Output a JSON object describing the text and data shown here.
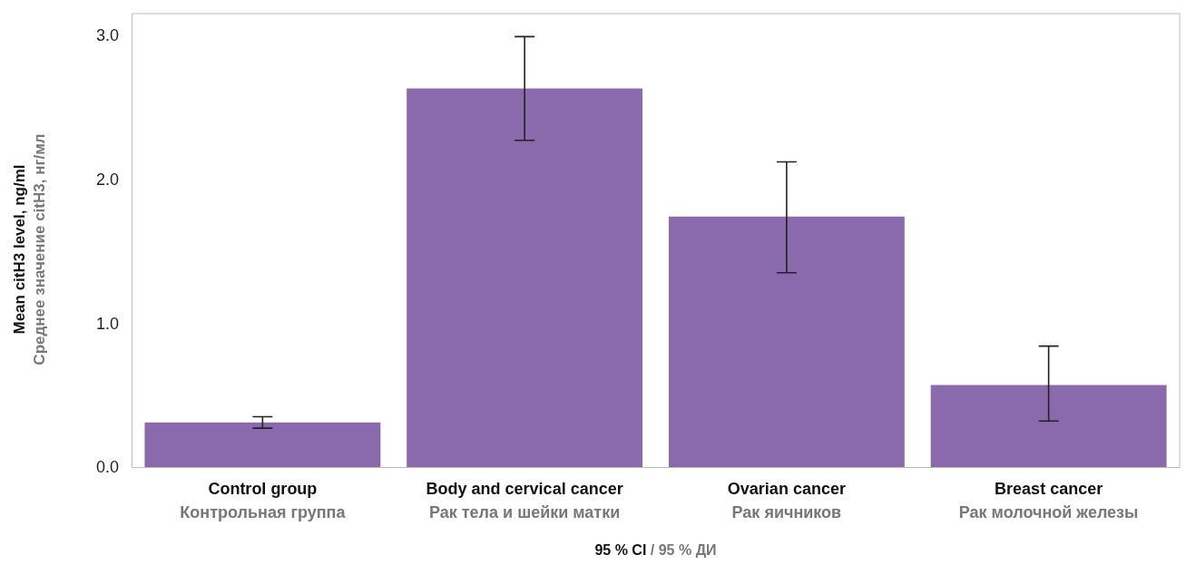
{
  "chart_data": {
    "type": "bar",
    "xlabel": "95 % CI / 95 % ДИ",
    "ylabel": "Mean citH3 level, ng/ml\nСреднее значение citH3, нг/мл",
    "categories": [
      "Control group\nКонтрольная группа",
      "Body and cervical cancer\nРак тела и шейки матки",
      "Ovarian cancer\nРак яичников",
      "Breast cancer\nРак молочной железы"
    ],
    "values": [
      0.31,
      2.63,
      1.74,
      0.57
    ],
    "errors": [
      [
        0.27,
        0.35
      ],
      [
        2.27,
        2.99
      ],
      [
        1.35,
        2.12
      ],
      [
        0.32,
        0.84
      ]
    ],
    "color": "#8a6aad",
    "ylim": [
      0,
      3.15
    ],
    "yticks": [
      {
        "value": 0,
        "label": "0.0"
      },
      {
        "value": 1,
        "label": "1.0"
      },
      {
        "value": 2,
        "label": "2.0"
      },
      {
        "value": 3,
        "label": "3.0"
      }
    ],
    "grid": false
  }
}
